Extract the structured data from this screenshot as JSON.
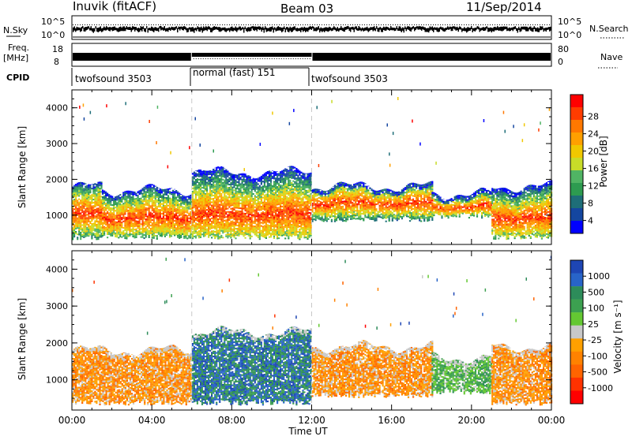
{
  "header": {
    "station": "Inuvik (fitACF)",
    "beam": "Beam 03",
    "date": "11/Sep/2014"
  },
  "aux_panels": {
    "nsky_label": "N.Sky",
    "nsky_ticks": [
      "10^5",
      "10^0"
    ],
    "nsearch_label": "N.Search",
    "nsearch_ticks": [
      "10^5",
      "10^0"
    ],
    "freq_label": "Freq.",
    "freq_unit": "[MHz]",
    "freq_ticks": [
      "18",
      "8"
    ],
    "nave_label": "Nave",
    "nave_ticks": [
      "80",
      "0"
    ],
    "cpid_label": "CPID",
    "cpid_segments": [
      {
        "label": "twofsound 3503",
        "start_hour": 0,
        "end_hour": 6
      },
      {
        "label": "normal (fast) 151",
        "start_hour": 6,
        "end_hour": 12
      },
      {
        "label": "twofsound 3503",
        "start_hour": 12,
        "end_hour": 24
      }
    ]
  },
  "chart_data": [
    {
      "type": "heatmap",
      "quantity": "power",
      "ylabel": "Slant Range [km]",
      "xlabel": "",
      "xlim": [
        0,
        24
      ],
      "ylim": [
        180,
        4500
      ],
      "yticks": [
        "1000",
        "2000",
        "3000",
        "4000"
      ],
      "colorbar": {
        "label": "Power [dB]",
        "ticks": [
          "28",
          "24",
          "20",
          "16",
          "12",
          "8",
          "4"
        ],
        "colors": [
          "#ff0000",
          "#ff3c00",
          "#ff7800",
          "#ffa000",
          "#f0c800",
          "#c8dc28",
          "#50b464",
          "#2d9b50",
          "#1e6e78",
          "#1446a0",
          "#0000ff"
        ]
      },
      "echo_bands": [
        {
          "x": [
            0,
            1.5
          ],
          "y": [
            300,
            1800
          ],
          "core": 1000
        },
        {
          "x": [
            1.5,
            6
          ],
          "y": [
            300,
            1700
          ],
          "core": 900
        },
        {
          "x": [
            6,
            12
          ],
          "y": [
            300,
            2200
          ],
          "core": 1000
        },
        {
          "x": [
            12,
            18
          ],
          "y": [
            800,
            1800
          ],
          "core": 1300
        },
        {
          "x": [
            18,
            21
          ],
          "y": [
            900,
            1600
          ],
          "core": 1200
        },
        {
          "x": [
            21,
            24
          ],
          "y": [
            300,
            1800
          ],
          "core": 900
        }
      ]
    },
    {
      "type": "heatmap",
      "quantity": "velocity",
      "ylabel": "Slant Range [km]",
      "xlabel": "Time UT",
      "xlim": [
        0,
        24
      ],
      "ylim": [
        180,
        4500
      ],
      "yticks": [
        "1000",
        "2000",
        "3000",
        "4000"
      ],
      "xticks": [
        "00:00",
        "04:00",
        "08:00",
        "12:00",
        "16:00",
        "20:00",
        "00:00"
      ],
      "colorbar": {
        "label": "Velocity [m s⁻¹]",
        "ticks": [
          "1000",
          "500",
          "100",
          "25",
          "-25",
          "-100",
          "-500",
          "-1000"
        ],
        "colors": [
          "#1e46b4",
          "#2864c8",
          "#2d8c5a",
          "#3ca050",
          "#64c832",
          "#c8c8c8",
          "#ffa000",
          "#ff8200",
          "#ff6400",
          "#ff3200",
          "#ff0000"
        ]
      },
      "echo_bands": [
        {
          "x": [
            0,
            6
          ],
          "y": [
            300,
            1800
          ],
          "dominant": "-100"
        },
        {
          "x": [
            6,
            12
          ],
          "y": [
            300,
            2300
          ],
          "dominant": "100"
        },
        {
          "x": [
            12,
            18
          ],
          "y": [
            500,
            1900
          ],
          "dominant": "-100"
        },
        {
          "x": [
            18,
            21
          ],
          "y": [
            600,
            1600
          ],
          "dominant": "25"
        },
        {
          "x": [
            21,
            24
          ],
          "y": [
            300,
            1900
          ],
          "dominant": "-100"
        }
      ]
    }
  ]
}
